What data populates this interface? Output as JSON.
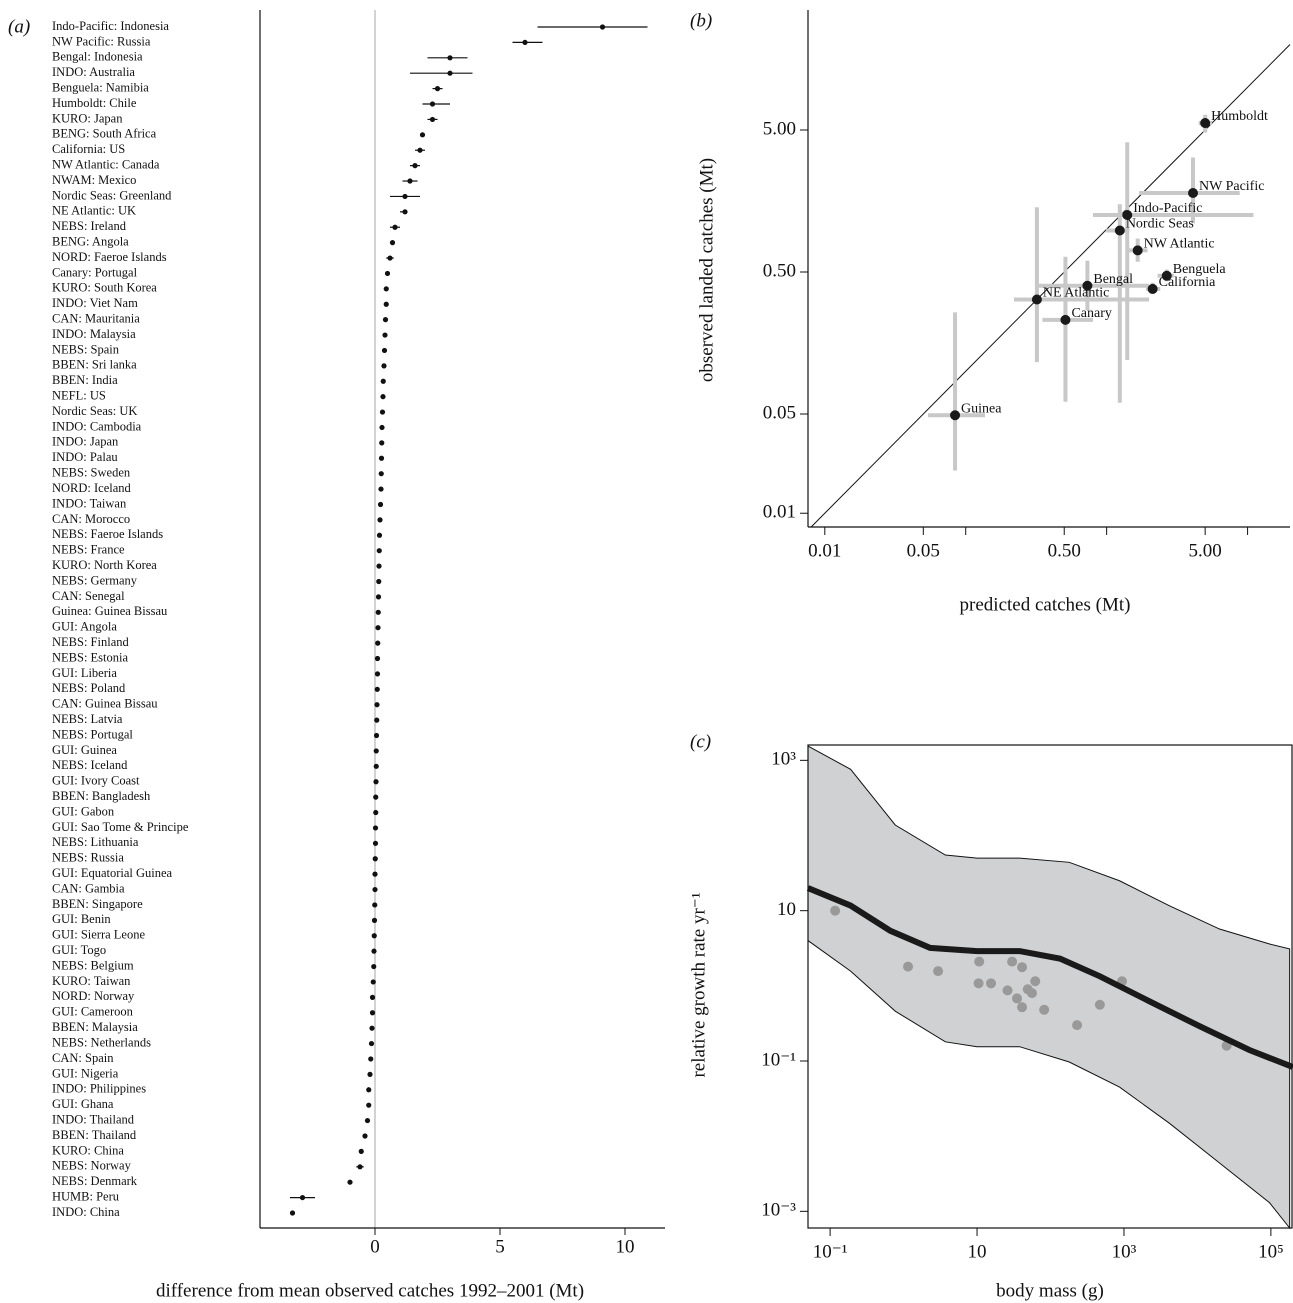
{
  "chart_data": [
    {
      "type": "dotplot",
      "label": "(a)",
      "x_label": "difference from mean observed catches 1992–2001 (Mt)",
      "categories": [
        "Indo-Pacific: Indonesia",
        "NW Pacific: Russia",
        "Bengal: Indonesia",
        "INDO: Australia",
        "Benguela: Namibia",
        "Humboldt: Chile",
        "KURO: Japan",
        "BENG: South Africa",
        "California: US",
        "NW Atlantic: Canada",
        "NWAM: Mexico",
        "Nordic Seas: Greenland",
        "NE Atlantic: UK",
        "NEBS: Ireland",
        "BENG: Angola",
        "NORD: Faeroe Islands",
        "Canary: Portugal",
        "KURO: South Korea",
        "INDO: Viet Nam",
        "CAN: Mauritania",
        "INDO: Malaysia",
        "NEBS: Spain",
        "BBEN: Sri lanka",
        "BBEN: India",
        "NEFL: US",
        "Nordic Seas: UK",
        "INDO: Cambodia",
        "INDO: Japan",
        "INDO: Palau",
        "NEBS: Sweden",
        "NORD: Iceland",
        "INDO: Taiwan",
        "CAN: Morocco",
        "NEBS: Faeroe Islands",
        "NEBS: France",
        "KURO: North Korea",
        "NEBS: Germany",
        "CAN: Senegal",
        "Guinea: Guinea Bissau",
        "GUI: Angola",
        "NEBS: Finland",
        "NEBS: Estonia",
        "GUI: Liberia",
        "NEBS: Poland",
        "CAN: Guinea Bissau",
        "NEBS: Latvia",
        "NEBS: Portugal",
        "GUI: Guinea",
        "NEBS: Iceland",
        "GUI: Ivory Coast",
        "BBEN: Bangladesh",
        "GUI: Gabon",
        "GUI: Sao Tome & Principe",
        "NEBS: Lithuania",
        "NEBS: Russia",
        "GUI: Equatorial Guinea",
        "CAN: Gambia",
        "BBEN: Singapore",
        "GUI: Benin",
        "GUI: Sierra Leone",
        "GUI: Togo",
        "NEBS: Belgium",
        "KURO: Taiwan",
        "NORD: Norway",
        "GUI: Cameroon",
        "BBEN: Malaysia",
        "NEBS: Netherlands",
        "CAN: Spain",
        "GUI: Nigeria",
        "INDO: Philippines",
        "GUI: Ghana",
        "INDO: Thailand",
        "BBEN: Thailand",
        "KURO: China",
        "NEBS: Norway",
        "NEBS: Denmark",
        "HUMB: Peru",
        "INDO: China"
      ],
      "values": [
        9.1,
        6.0,
        3.0,
        3.0,
        2.5,
        2.3,
        2.3,
        1.9,
        1.8,
        1.6,
        1.4,
        1.2,
        1.2,
        0.8,
        0.7,
        0.6,
        0.5,
        0.45,
        0.45,
        0.42,
        0.4,
        0.38,
        0.36,
        0.33,
        0.32,
        0.3,
        0.28,
        0.27,
        0.26,
        0.25,
        0.24,
        0.22,
        0.2,
        0.18,
        0.17,
        0.16,
        0.15,
        0.14,
        0.13,
        0.12,
        0.11,
        0.1,
        0.1,
        0.09,
        0.08,
        0.07,
        0.06,
        0.05,
        0.05,
        0.04,
        0.03,
        0.03,
        0.02,
        0.02,
        0.01,
        0.0,
        0.0,
        -0.01,
        -0.02,
        -0.03,
        -0.04,
        -0.05,
        -0.07,
        -0.1,
        -0.1,
        -0.12,
        -0.14,
        -0.17,
        -0.2,
        -0.25,
        -0.25,
        -0.3,
        -0.4,
        -0.55,
        -0.6,
        -1.0,
        -2.9,
        -3.3
      ],
      "lower": [
        6.5,
        5.5,
        2.1,
        1.4,
        2.3,
        1.9,
        2.1,
        1.8,
        1.6,
        1.4,
        1.1,
        0.6,
        1.0,
        0.6,
        null,
        0.45,
        null,
        null,
        null,
        null,
        null,
        null,
        null,
        null,
        null,
        null,
        null,
        null,
        null,
        null,
        null,
        null,
        null,
        null,
        null,
        null,
        null,
        null,
        null,
        null,
        null,
        null,
        null,
        null,
        null,
        null,
        null,
        null,
        null,
        null,
        null,
        null,
        null,
        null,
        null,
        null,
        null,
        null,
        null,
        null,
        null,
        null,
        null,
        null,
        null,
        null,
        null,
        null,
        null,
        null,
        null,
        null,
        null,
        null,
        -0.75,
        -1.1,
        -3.4,
        -3.4
      ],
      "upper": [
        10.9,
        6.7,
        3.7,
        3.9,
        2.7,
        3.0,
        2.5,
        2.0,
        2.0,
        1.8,
        1.7,
        1.8,
        1.3,
        1.0,
        null,
        0.75,
        null,
        null,
        null,
        null,
        null,
        null,
        null,
        null,
        null,
        null,
        null,
        null,
        null,
        null,
        null,
        null,
        null,
        null,
        null,
        null,
        null,
        null,
        null,
        null,
        null,
        null,
        null,
        null,
        null,
        null,
        null,
        null,
        null,
        null,
        null,
        null,
        null,
        null,
        null,
        null,
        null,
        null,
        null,
        null,
        null,
        null,
        null,
        null,
        null,
        null,
        null,
        null,
        null,
        null,
        null,
        null,
        null,
        null,
        -0.45,
        -0.9,
        -2.4,
        -3.2
      ],
      "xlim": [
        -4.6,
        11.6
      ],
      "xticks": [
        0,
        5,
        10
      ],
      "zero_line": true,
      "color": "#111111"
    },
    {
      "type": "scatter",
      "label": "(b)",
      "x_label": "predicted catches (Mt)",
      "y_label": "observed landed catches (Mt)",
      "names": [
        "Humboldt",
        "NW Pacific",
        "Indo-Pacific",
        "Nordic Seas",
        "NW Atlantic",
        "Benguela",
        "California",
        "Bengal",
        "NE Atlantic",
        "Canary",
        "Guinea"
      ],
      "x": [
        5.0,
        4.1,
        1.4,
        1.24,
        1.66,
        2.67,
        2.12,
        0.73,
        0.32,
        0.51,
        0.084
      ],
      "y": [
        5.6,
        1.8,
        1.26,
        0.98,
        0.71,
        0.47,
        0.38,
        0.4,
        0.32,
        0.23,
        0.049
      ],
      "x_lower": [
        4.5,
        1.7,
        0.8,
        0.99,
        1.4,
        2.3,
        1.9,
        0.33,
        0.22,
        0.35,
        0.054
      ],
      "x_upper": [
        5.6,
        8.8,
        11,
        1.45,
        1.95,
        3.0,
        2.4,
        2.0,
        2.0,
        0.8,
        0.137
      ],
      "y_lower": [
        4.8,
        1.1,
        0.12,
        0.06,
        0.59,
        0.43,
        0.35,
        0.27,
        0.116,
        0.061,
        0.02
      ],
      "y_upper": [
        6.4,
        3.2,
        4.1,
        1.5,
        0.86,
        0.52,
        0.42,
        0.6,
        1.43,
        0.64,
        0.26
      ],
      "xlim": [
        0.0076,
        20
      ],
      "ylim": [
        0.008,
        35
      ],
      "log": true,
      "identity_line": true,
      "xticks": [
        0.01,
        0.05,
        {
          "value": 0.5,
          "label": "0.50"
        },
        {
          "value": 5,
          "label": "5.00"
        }
      ],
      "xminor": [
        0.1,
        1,
        10
      ],
      "yticks": [
        0.01,
        0.05,
        {
          "value": 0.5,
          "label": "0.50"
        },
        {
          "value": 5,
          "label": "5.00"
        }
      ],
      "color": "#1a1a1a",
      "error_color": "#c8c8c8"
    },
    {
      "type": "band-line",
      "label": "(c)",
      "x_label": "body mass (g)",
      "y_label": "relative growth rate yr⁻¹",
      "curve": {
        "x": [
          0.05,
          0.19,
          0.66,
          2.3,
          10,
          38,
          135,
          470,
          2240,
          10700,
          51000,
          200000
        ],
        "y": [
          20,
          11.7,
          5.4,
          3.2,
          2.9,
          2.9,
          2.3,
          1.34,
          0.62,
          0.29,
          0.14,
          0.083
        ]
      },
      "band": {
        "x": [
          0.05,
          0.19,
          0.77,
          3.7,
          10,
          38,
          180,
          870,
          4100,
          20000,
          96000,
          180000
        ],
        "upper": [
          1550,
          760,
          138,
          55,
          50,
          50,
          44,
          25,
          11.7,
          5.7,
          3.6,
          3.1
        ],
        "lower": [
          4,
          1.57,
          0.46,
          0.18,
          0.155,
          0.155,
          0.097,
          0.045,
          0.015,
          0.0044,
          0.0013,
          0.0006
        ]
      },
      "points": {
        "x": [
          0.117,
          1.15,
          2.95,
          10.7,
          10.5,
          15.5,
          26,
          30,
          41,
          35,
          41,
          49,
          56,
          62,
          82,
          230,
          470,
          940,
          25000
        ],
        "y": [
          10,
          1.8,
          1.57,
          2.1,
          1.08,
          1.08,
          0.87,
          2.1,
          1.77,
          0.68,
          0.52,
          0.9,
          0.8,
          1.15,
          0.48,
          0.3,
          0.56,
          1.15,
          0.16
        ]
      },
      "xlim": [
        0.05,
        200000
      ],
      "ylim": [
        0.0006,
        1600
      ],
      "log": true,
      "frame": true,
      "xticks": [
        {
          "value": 0.1,
          "label": "10⁻¹"
        },
        10,
        {
          "value": 1000,
          "label": "10³"
        },
        {
          "value": 100000,
          "label": "10⁵"
        }
      ],
      "yticks": [
        {
          "value": 0.001,
          "label": "10⁻³"
        },
        {
          "value": 0.1,
          "label": "10⁻¹"
        },
        10,
        {
          "value": 1000,
          "label": "10³"
        }
      ],
      "line_color": "#1a1a1a",
      "band_color": "#d0d1d3",
      "point_color": "#999999"
    }
  ]
}
